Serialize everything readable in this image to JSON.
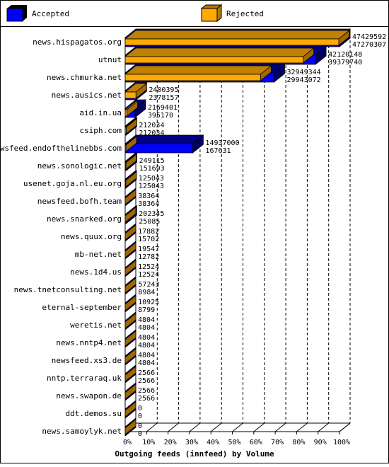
{
  "chart_data": {
    "type": "bar",
    "orientation": "horizontal",
    "style": "3d",
    "title": "Outgoing feeds (innfeed) by Volume",
    "xlabel": "",
    "ylabel": "",
    "xlim": [
      0,
      100
    ],
    "x_unit": "%",
    "x_ticks": [
      "0%",
      "10%",
      "20%",
      "30%",
      "40%",
      "50%",
      "60%",
      "70%",
      "80%",
      "90%",
      "100%"
    ],
    "grid": true,
    "legend_position": "top",
    "categories": [
      "news.hispagatos.org",
      "utnut",
      "news.chmurka.net",
      "news.ausics.net",
      "aid.in.ua",
      "csiph.com",
      "newsfeed.endofthelinebbs.com",
      "news.sonologic.net",
      "usenet.goja.nl.eu.org",
      "newsfeed.bofh.team",
      "news.snarked.org",
      "news.quux.org",
      "mb-net.net",
      "news.1d4.us",
      "news.tnetconsulting.net",
      "eternal-september",
      "weretis.net",
      "news.nntp4.net",
      "newsfeed.xs3.de",
      "nntp.terraraq.uk",
      "news.swapon.de",
      "ddt.demos.su",
      "news.samoylyk.net"
    ],
    "series": [
      {
        "name": "Accepted",
        "color": "#0000ff",
        "values": [
          47429592,
          42120148,
          32949344,
          2400395,
          2169401,
          212034,
          14937000,
          249115,
          125043,
          38364,
          202345,
          17882,
          19547,
          12524,
          57243,
          10925,
          4804,
          4804,
          4804,
          2566,
          2566,
          0,
          0
        ]
      },
      {
        "name": "Rejected",
        "color": "#ffaa00",
        "values": [
          47270307,
          39379740,
          29943072,
          2378157,
          395170,
          212034,
          167631,
          151693,
          125043,
          38364,
          25085,
          15702,
          12782,
          12524,
          8984,
          8799,
          4804,
          4804,
          4804,
          2566,
          2566,
          0,
          0
        ]
      }
    ],
    "labels_accepted": [
      "47429592",
      "42120148",
      "32949344",
      "2400395",
      "2169401",
      "212034",
      "14937000",
      "249115",
      "125043",
      "38364",
      "202345",
      "17882",
      "19547",
      "12524",
      "57243",
      "10925",
      "4804",
      "4804",
      "4804",
      "2566",
      "2566",
      "0",
      "0"
    ],
    "labels_rejected": [
      "47270307",
      "39379740",
      "29943072",
      "2378157",
      "395170",
      "212034",
      "167631",
      "151693",
      "125043",
      "38364",
      "25085",
      "15702",
      "12782",
      "12524",
      "8984",
      "8799",
      "4804",
      "4804",
      "4804",
      "2566",
      "2566",
      "0",
      "0"
    ]
  }
}
